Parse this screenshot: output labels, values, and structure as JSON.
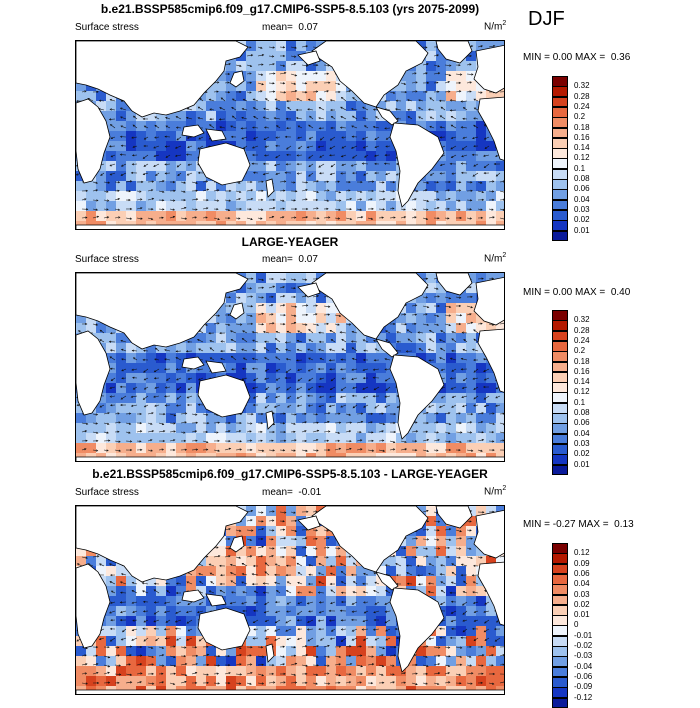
{
  "season": "DJF",
  "panels": [
    {
      "title": "b.e21.BSSP585cmip6.f09_g17.CMIP6-SSP5-8.5.103 (yrs 2075-2099)",
      "left_label": "Surface stress",
      "mean_label": "mean=",
      "mean_value": "0.07",
      "units_base": "N/m",
      "units_exp": "2",
      "min_label": "MIN =",
      "min_value": "0.00",
      "max_label": "MAX =",
      "max_value": "0.36",
      "colorbar_levels": [
        "0.32",
        "0.28",
        "0.24",
        "0.2",
        "0.18",
        "0.16",
        "0.14",
        "0.12",
        "0.1",
        "0.08",
        "0.06",
        "0.04",
        "0.03",
        "0.02",
        "0.01"
      ],
      "colors": [
        "#7a0000",
        "#b41900",
        "#d6421e",
        "#e8683f",
        "#f08c64",
        "#f6ae8c",
        "#fbcfb5",
        "#fde8dc",
        "#eef4fc",
        "#c8dcf6",
        "#9ec2ee",
        "#719fe3",
        "#4a7ddb",
        "#2a5bcf",
        "#1536c2",
        "#0a1a9a"
      ],
      "pattern": "full"
    },
    {
      "title": "LARGE-YEAGER",
      "left_label": "Surface stress",
      "mean_label": "mean=",
      "mean_value": "0.07",
      "units_base": "N/m",
      "units_exp": "2",
      "min_label": "MIN =",
      "min_value": "0.00",
      "max_label": "MAX =",
      "max_value": "0.40",
      "colorbar_levels": [
        "0.32",
        "0.28",
        "0.24",
        "0.2",
        "0.18",
        "0.16",
        "0.14",
        "0.12",
        "0.1",
        "0.08",
        "0.06",
        "0.04",
        "0.03",
        "0.02",
        "0.01"
      ],
      "colors": [
        "#7a0000",
        "#b41900",
        "#d6421e",
        "#e8683f",
        "#f08c64",
        "#f6ae8c",
        "#fbcfb5",
        "#fde8dc",
        "#eef4fc",
        "#c8dcf6",
        "#9ec2ee",
        "#719fe3",
        "#4a7ddb",
        "#2a5bcf",
        "#1536c2",
        "#0a1a9a"
      ],
      "pattern": "full"
    },
    {
      "title": "b.e21.BSSP585cmip6.f09_g17.CMIP6-SSP5-8.5.103 - LARGE-YEAGER",
      "left_label": "Surface stress",
      "mean_label": "mean=",
      "mean_value": "-0.01",
      "units_base": "N/m",
      "units_exp": "2",
      "min_label": "MIN =",
      "min_value": "-0.27",
      "max_label": "MAX =",
      "max_value": "0.13",
      "colorbar_levels": [
        "0.12",
        "0.09",
        "0.06",
        "0.04",
        "0.03",
        "0.02",
        "0.01",
        "0",
        "-0.01",
        "-0.02",
        "-0.03",
        "-0.04",
        "-0.06",
        "-0.09",
        "-0.12"
      ],
      "colors": [
        "#7a0000",
        "#b41900",
        "#d6421e",
        "#e8683f",
        "#f08c64",
        "#f6ae8c",
        "#fbcfb5",
        "#fde8dc",
        "#eef4fc",
        "#c8dcf6",
        "#9ec2ee",
        "#719fe3",
        "#4a7ddb",
        "#2a5bcf",
        "#1536c2",
        "#0a1a9a"
      ],
      "pattern": "diff"
    }
  ]
}
